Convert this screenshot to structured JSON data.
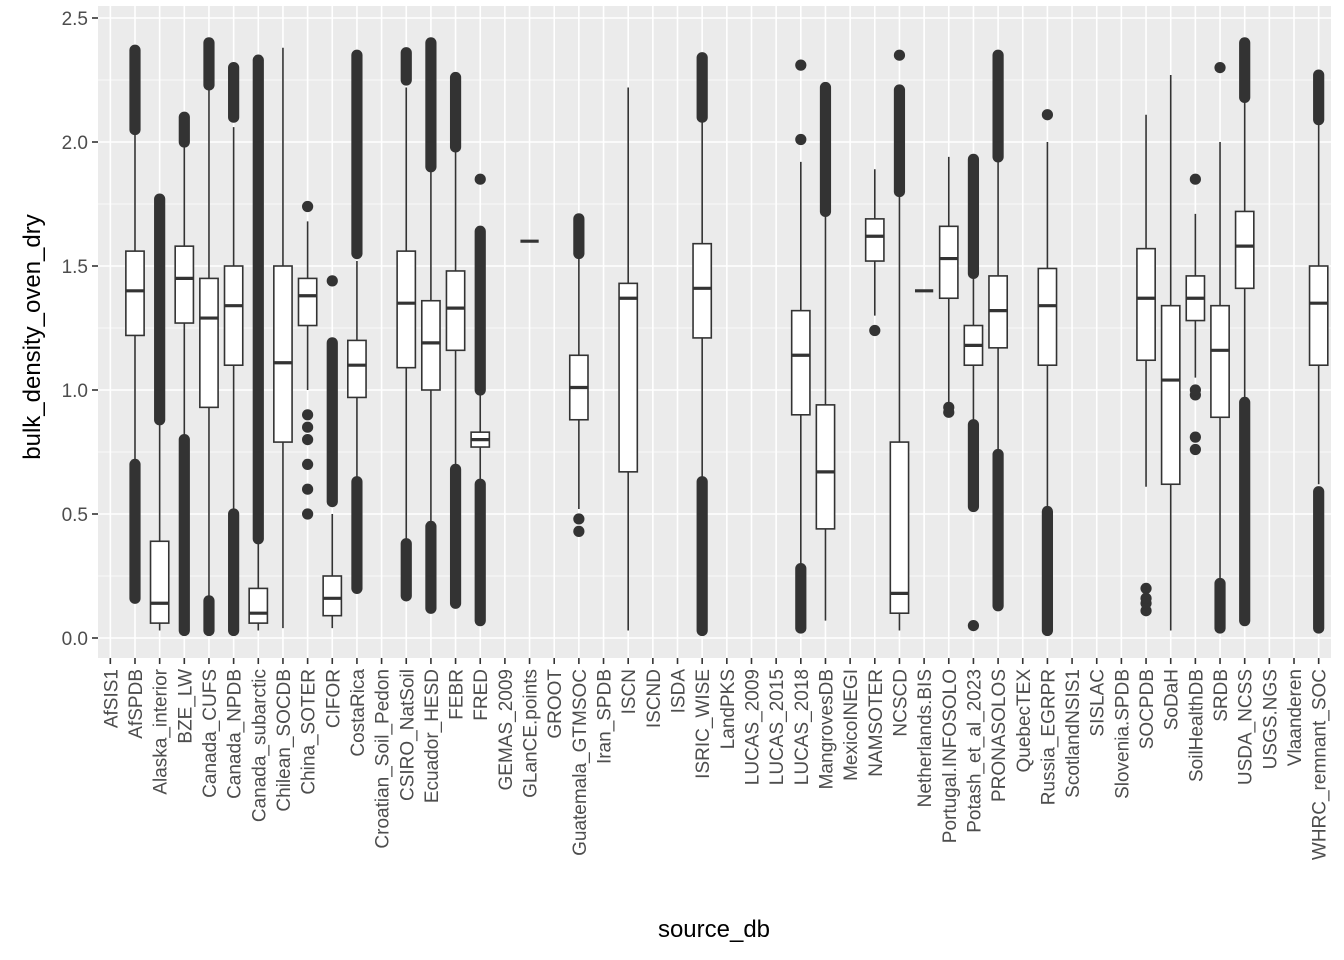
{
  "chart_data": {
    "type": "boxplot",
    "xlabel": "source_db",
    "ylabel": "bulk_density_oven_dry",
    "ylim": [
      -0.11,
      2.5
    ],
    "yticks": [
      0.0,
      0.5,
      1.0,
      1.5,
      2.0,
      2.5
    ],
    "ytick_labels": [
      "0.0",
      "0.5",
      "1.0",
      "1.5",
      "2.0",
      "2.5"
    ],
    "grid": true,
    "panel_color": "#ebebeb",
    "box_fill": "#ffffff",
    "ink_color": "#333333",
    "categories": [
      "AfSIS1",
      "AfSPDB",
      "Alaska_interior",
      "BZE_LW",
      "Canada_CUFS",
      "Canada_NPDB",
      "Canada_subarctic",
      "Chilean_SOCDB",
      "China_SOTER",
      "CIFOR",
      "CostaRica",
      "Croatian_Soil_Pedon",
      "CSIRO_NatSoil",
      "Ecuador_HESD",
      "FEBR",
      "FRED",
      "GEMAS_2009",
      "GLanCE.points",
      "GROOT",
      "Guatemala_GTMSOC",
      "Iran_SPDB",
      "ISCN",
      "ISCND",
      "ISDA",
      "ISRIC_WISE",
      "LandPKS",
      "LUCAS_2009",
      "LUCAS_2015",
      "LUCAS_2018",
      "MangrovesDB",
      "MexicoINEGI",
      "NAMSOTER",
      "NCSCD",
      "Netherlands.BIS",
      "Portugal.INFOSOLO",
      "Potash_et_al_2023",
      "PRONASOLOS",
      "QuebecTEX",
      "Russia_EGRPR",
      "ScotlandNSIS1",
      "SISLAC",
      "Slovenia.SPDB",
      "SOCPDB",
      "SoDaH",
      "SoilHealthDB",
      "SRDB",
      "USDA_NCSS",
      "USGS.NGS",
      "Vlaanderen",
      "WHRC_remnant_SOC"
    ],
    "boxes": [
      {
        "category": "AfSPDB",
        "lower_whisker": 0.7,
        "q1": 1.22,
        "median": 1.4,
        "q3": 1.56,
        "upper_whisker": 2.05,
        "outliers_low_range": [
          0.16,
          0.7
        ],
        "outliers_high_range": [
          2.05,
          2.37
        ]
      },
      {
        "category": "Alaska_interior",
        "lower_whisker": 0.03,
        "q1": 0.06,
        "median": 0.14,
        "q3": 0.39,
        "upper_whisker": 0.88,
        "outliers_high_range": [
          0.88,
          1.77
        ]
      },
      {
        "category": "BZE_LW",
        "lower_whisker": 0.8,
        "q1": 1.27,
        "median": 1.45,
        "q3": 1.58,
        "upper_whisker": 2.0,
        "outliers_low_range": [
          0.03,
          0.8
        ],
        "outliers_high_range": [
          2.0,
          2.1
        ]
      },
      {
        "category": "Canada_CUFS",
        "lower_whisker": 0.16,
        "q1": 0.93,
        "median": 1.29,
        "q3": 1.45,
        "upper_whisker": 2.22,
        "outliers_low_range": [
          0.03,
          0.15
        ],
        "outliers_high_range": [
          2.23,
          2.4
        ]
      },
      {
        "category": "Canada_NPDB",
        "lower_whisker": 0.51,
        "q1": 1.1,
        "median": 1.34,
        "q3": 1.5,
        "upper_whisker": 2.06,
        "outliers_low_range": [
          0.03,
          0.5
        ],
        "outliers_high_range": [
          2.1,
          2.3
        ]
      },
      {
        "category": "Canada_subarctic",
        "lower_whisker": 0.03,
        "q1": 0.06,
        "median": 0.1,
        "q3": 0.2,
        "upper_whisker": 0.4,
        "outliers_high_range": [
          0.4,
          2.33
        ]
      },
      {
        "category": "Chilean_SOCDB",
        "lower_whisker": 0.04,
        "q1": 0.79,
        "median": 1.11,
        "q3": 1.5,
        "upper_whisker": 2.38
      },
      {
        "category": "China_SOTER",
        "lower_whisker": 1.0,
        "q1": 1.26,
        "median": 1.38,
        "q3": 1.45,
        "upper_whisker": 1.68,
        "outliers": [
          0.5,
          0.6,
          0.7,
          0.8,
          0.85,
          0.9,
          1.74
        ]
      },
      {
        "category": "CIFOR",
        "lower_whisker": 0.04,
        "q1": 0.09,
        "median": 0.16,
        "q3": 0.25,
        "upper_whisker": 0.5,
        "outliers_high_range": [
          0.55,
          1.19
        ],
        "outliers": [
          1.44
        ]
      },
      {
        "category": "CostaRica",
        "lower_whisker": 0.65,
        "q1": 0.97,
        "median": 1.1,
        "q3": 1.2,
        "upper_whisker": 1.52,
        "outliers_low_range": [
          0.2,
          0.63
        ],
        "outliers_high_range": [
          1.55,
          2.35
        ]
      },
      {
        "category": "CSIRO_NatSoil",
        "lower_whisker": 0.4,
        "q1": 1.09,
        "median": 1.35,
        "q3": 1.56,
        "upper_whisker": 2.22,
        "outliers_low_range": [
          0.17,
          0.38
        ],
        "outliers_high_range": [
          2.25,
          2.36
        ]
      },
      {
        "category": "Ecuador_HESD",
        "lower_whisker": 0.47,
        "q1": 1.0,
        "median": 1.19,
        "q3": 1.36,
        "upper_whisker": 1.9,
        "outliers_low_range": [
          0.12,
          0.45
        ],
        "outliers_high_range": [
          1.9,
          2.4
        ]
      },
      {
        "category": "FEBR",
        "lower_whisker": 0.7,
        "q1": 1.16,
        "median": 1.33,
        "q3": 1.48,
        "upper_whisker": 1.97,
        "outliers_low_range": [
          0.14,
          0.68
        ],
        "outliers_high_range": [
          1.98,
          2.26
        ]
      },
      {
        "category": "FRED",
        "lower_whisker": 0.64,
        "q1": 0.77,
        "median": 0.8,
        "q3": 0.83,
        "upper_whisker": 0.98,
        "outliers_low_range": [
          0.07,
          0.62
        ],
        "outliers_high_range": [
          1.0,
          1.64
        ],
        "outliers": [
          1.85
        ]
      },
      {
        "category": "GLanCE.points",
        "lower_whisker": 1.6,
        "q1": 1.6,
        "median": 1.6,
        "q3": 1.6,
        "upper_whisker": 1.6
      },
      {
        "category": "Guatemala_GTMSOC",
        "lower_whisker": 0.52,
        "q1": 0.88,
        "median": 1.01,
        "q3": 1.14,
        "upper_whisker": 1.53,
        "outliers": [
          0.43,
          0.48
        ],
        "outliers_high_range": [
          1.55,
          1.69
        ]
      },
      {
        "category": "ISCN",
        "lower_whisker": 0.03,
        "q1": 0.67,
        "median": 1.37,
        "q3": 1.43,
        "upper_whisker": 2.22
      },
      {
        "category": "ISRIC_WISE",
        "lower_whisker": 0.64,
        "q1": 1.21,
        "median": 1.41,
        "q3": 1.59,
        "upper_whisker": 2.1,
        "outliers_low_range": [
          0.03,
          0.63
        ],
        "outliers_high_range": [
          2.1,
          2.34
        ]
      },
      {
        "category": "LUCAS_2018",
        "lower_whisker": 0.3,
        "q1": 0.9,
        "median": 1.14,
        "q3": 1.32,
        "upper_whisker": 1.92,
        "outliers_low_range": [
          0.04,
          0.28
        ],
        "outliers": [
          2.01,
          2.31
        ]
      },
      {
        "category": "MangrovesDB",
        "lower_whisker": 0.07,
        "q1": 0.44,
        "median": 0.67,
        "q3": 0.94,
        "upper_whisker": 1.7,
        "outliers_high_range": [
          1.72,
          2.22
        ]
      },
      {
        "category": "NAMSOTER",
        "lower_whisker": 1.3,
        "q1": 1.52,
        "median": 1.62,
        "q3": 1.69,
        "upper_whisker": 1.89,
        "outliers": [
          1.24
        ]
      },
      {
        "category": "NCSCD",
        "lower_whisker": 0.03,
        "q1": 0.1,
        "median": 0.18,
        "q3": 0.79,
        "upper_whisker": 1.8,
        "outliers_high_range": [
          1.8,
          2.21
        ],
        "outliers": [
          2.35
        ]
      },
      {
        "category": "Netherlands.BIS",
        "lower_whisker": 1.4,
        "q1": 1.4,
        "median": 1.4,
        "q3": 1.4,
        "upper_whisker": 1.4
      },
      {
        "category": "Portugal.INFOSOLO",
        "lower_whisker": 0.95,
        "q1": 1.37,
        "median": 1.53,
        "q3": 1.66,
        "upper_whisker": 1.94,
        "outliers": [
          0.91,
          0.93
        ]
      },
      {
        "category": "Potash_et_al_2023",
        "lower_whisker": 0.87,
        "q1": 1.1,
        "median": 1.18,
        "q3": 1.26,
        "upper_whisker": 1.45,
        "outliers_low_range": [
          0.53,
          0.86
        ],
        "outliers_high_range": [
          1.47,
          1.93
        ],
        "outliers": [
          0.05
        ]
      },
      {
        "category": "PRONASOLOS",
        "lower_whisker": 0.75,
        "q1": 1.17,
        "median": 1.32,
        "q3": 1.46,
        "upper_whisker": 1.93,
        "outliers_low_range": [
          0.13,
          0.74
        ],
        "outliers_high_range": [
          1.94,
          2.35
        ]
      },
      {
        "category": "Russia_EGRPR",
        "lower_whisker": 0.53,
        "q1": 1.1,
        "median": 1.34,
        "q3": 1.49,
        "upper_whisker": 2.0,
        "outliers_low_range": [
          0.03,
          0.51
        ],
        "outliers": [
          2.11
        ]
      },
      {
        "category": "SOCPDB",
        "lower_whisker": 0.61,
        "q1": 1.12,
        "median": 1.37,
        "q3": 1.57,
        "upper_whisker": 2.11,
        "outliers": [
          0.11,
          0.14,
          0.16,
          0.2
        ]
      },
      {
        "category": "SoDaH",
        "lower_whisker": 0.03,
        "q1": 0.62,
        "median": 1.04,
        "q3": 1.34,
        "upper_whisker": 2.27
      },
      {
        "category": "SoilHealthDB",
        "lower_whisker": 1.05,
        "q1": 1.28,
        "median": 1.37,
        "q3": 1.46,
        "upper_whisker": 1.71,
        "outliers": [
          0.76,
          0.81,
          0.98,
          1.0,
          1.85
        ]
      },
      {
        "category": "SRDB",
        "lower_whisker": 0.22,
        "q1": 0.89,
        "median": 1.16,
        "q3": 1.34,
        "upper_whisker": 2.0,
        "outliers_low_range": [
          0.04,
          0.22
        ],
        "outliers": [
          2.3
        ]
      },
      {
        "category": "USDA_NCSS",
        "lower_whisker": 0.95,
        "q1": 1.41,
        "median": 1.58,
        "q3": 1.72,
        "upper_whisker": 2.18,
        "outliers_low_range": [
          0.07,
          0.95
        ],
        "outliers_high_range": [
          2.18,
          2.4
        ]
      },
      {
        "category": "WHRC_remnant_SOC",
        "lower_whisker": 0.62,
        "q1": 1.1,
        "median": 1.35,
        "q3": 1.5,
        "upper_whisker": 2.07,
        "outliers_low_range": [
          0.04,
          0.59
        ],
        "outliers_high_range": [
          2.09,
          2.27
        ]
      }
    ]
  }
}
